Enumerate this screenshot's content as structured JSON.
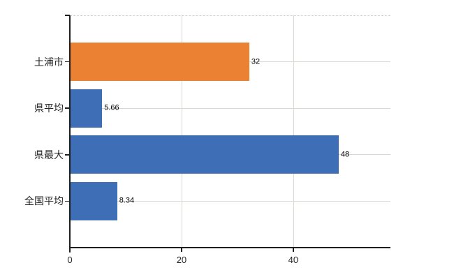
{
  "chart_data": {
    "type": "bar",
    "orientation": "horizontal",
    "title": "",
    "categories": [
      "土浦市",
      "県平均",
      "県最大",
      "全国平均"
    ],
    "values": [
      32,
      5.66,
      48,
      8.34
    ],
    "value_labels": [
      "32",
      "5.66",
      "48",
      "8.34"
    ],
    "series": [
      {
        "name": "",
        "values": [
          32,
          5.66,
          48,
          8.34
        ]
      }
    ],
    "bar_colors": [
      "#EA8133",
      "#3E6EB5",
      "#3E6EB5",
      "#3E6EB5"
    ],
    "x_ticks": [
      0,
      20,
      40
    ],
    "x_tick_labels": [
      "0",
      "20",
      "40"
    ],
    "xlim": [
      0,
      57.4
    ],
    "xlabel": "",
    "ylabel": "",
    "grid": true,
    "legend": false,
    "styles": {
      "axis_color": "#1f1f1f",
      "gridline_color": "#d6d9d2",
      "top_border_color": "#cfcfcf",
      "top_border_style": "dashed",
      "category_label_color": "#262626",
      "value_label_color": "#000000",
      "background": "#ffffff"
    }
  }
}
